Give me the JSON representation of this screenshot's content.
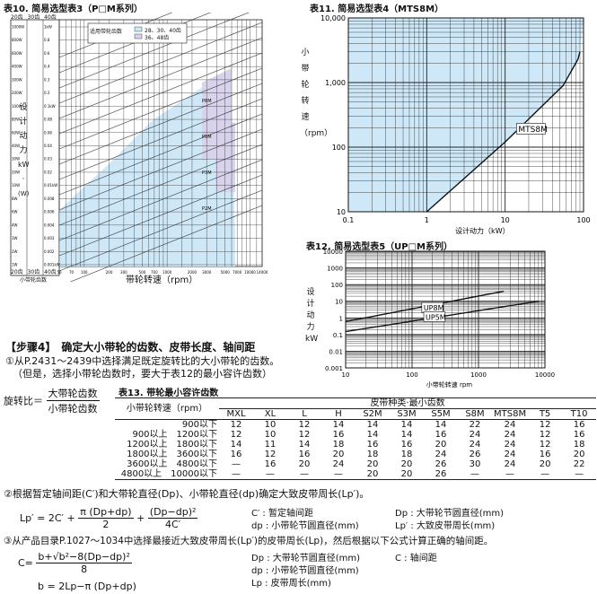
{
  "table10": {
    "title": "表10. 简易选型表3（P□M系列）",
    "ylabel_chars": [
      "设",
      "计",
      "动",
      "力",
      "kW",
      "·",
      "(W)"
    ],
    "xlabel": "带轮转速（rpm）",
    "legend_title": "适用带轮齿数",
    "legend_items": [
      "28、30、40齿",
      "36、48齿"
    ],
    "top_scale": [
      "20齿",
      "30齿",
      "40齿"
    ],
    "bottom_scale": [
      "20齿",
      "30齿",
      "40齿"
    ],
    "bottom_scale_label": "小带轮齿数",
    "left_ticks": [
      "1000W",
      "800W",
      "600W",
      "400W",
      "300W",
      "200W",
      "100W",
      "80W",
      "60W",
      "40W",
      "30W",
      "20W",
      "10W",
      "8W",
      "6W",
      "4W",
      "3W",
      "2W",
      "1W"
    ],
    "inner_left_ticks": [
      "1kW",
      "0.8",
      "0.6",
      "0.4",
      "0.3",
      "0.2",
      "0.1kW",
      "0.08",
      "0.06",
      "0.04",
      "0.03",
      "0.02",
      "0.01kW",
      "0.008",
      "0.006",
      "0.004",
      "0.003",
      "0.002",
      "0.001kW"
    ],
    "x_ticks": [
      "50",
      "70",
      "100",
      "200",
      "300",
      "500",
      "700",
      "1000",
      "2000",
      "3000",
      "5000",
      "7000",
      "10000",
      "14000"
    ],
    "series_labels": [
      "P8M",
      "P5M",
      "P3M",
      "P2M"
    ]
  },
  "chart_data": [
    {
      "type": "line",
      "title": "表11. 简易选型表4（MTS8M）",
      "xlabel": "设计动力（kW）",
      "ylabel": "小带轮转速（rpm）",
      "x_scale": "log",
      "y_scale": "log",
      "xlim": [
        0.1,
        100
      ],
      "ylim": [
        10,
        10000
      ],
      "x_ticks": [
        "0.1",
        "1",
        "10",
        "100"
      ],
      "y_ticks": [
        "10",
        "100",
        "1,000",
        "10,000"
      ],
      "series": [
        {
          "name": "MTS8M",
          "x": [
            1.0,
            10,
            55,
            85,
            90
          ],
          "y": [
            10,
            120,
            900,
            2300,
            3000
          ]
        }
      ]
    },
    {
      "type": "line",
      "title": "表12. 简易选型表5（UP□M系列）",
      "xlabel": "小带轮转速",
      "xunit": "rpm",
      "ylabel": "设计动力kW",
      "x_scale": "log",
      "y_scale": "log",
      "xlim": [
        10,
        10000
      ],
      "ylim": [
        0.001,
        10000
      ],
      "x_ticks": [
        "10",
        "100",
        "1000",
        "10000"
      ],
      "y_ticks": [
        "10000",
        "1000",
        "100",
        "10",
        "1",
        "0.1",
        "0.01",
        "0.001"
      ],
      "series": [
        {
          "name": "UP8M",
          "x": [
            10,
            2400
          ],
          "y": [
            0.6,
            40
          ]
        },
        {
          "name": "UP5M",
          "x": [
            10,
            8000
          ],
          "y": [
            0.15,
            10
          ]
        }
      ]
    }
  ],
  "step4": {
    "title": "【步骤4】　确定大小带轮的齿数、皮带长度、轴间距",
    "p1": "①从P.2431～2439中选择满足既定旋转比的大小带轮的齿数。",
    "p2": "（但是，选择小带轮齿数时，要大于表12的最小容许齿数）",
    "ratio_label": "旋转比＝",
    "ratio_num": "大带轮齿数",
    "ratio_den": "小带轮齿数"
  },
  "table13": {
    "title": "表13. 带轮最小容许齿数",
    "speed_header": "小带轮转速（rpm）",
    "type_header": "皮带种类·最小齿数",
    "columns": [
      "MXL",
      "XL",
      "L",
      "H",
      "S2M",
      "S3M",
      "S5M",
      "S8M",
      "MTS8M",
      "T5",
      "T10"
    ],
    "rows": [
      {
        "speed": "900以下",
        "values": [
          "12",
          "10",
          "12",
          "14",
          "14",
          "14",
          "14",
          "22",
          "24",
          "12",
          "16"
        ]
      },
      {
        "speed": "900以上　1200以下",
        "values": [
          "12",
          "10",
          "12",
          "16",
          "14",
          "14",
          "16",
          "24",
          "24",
          "12",
          "16"
        ]
      },
      {
        "speed": "1200以上　1800以下",
        "values": [
          "14",
          "11",
          "14",
          "18",
          "16",
          "16",
          "20",
          "24",
          "24",
          "12",
          "18"
        ]
      },
      {
        "speed": "1800以上　3600以下",
        "values": [
          "16",
          "12",
          "16",
          "20",
          "18",
          "18",
          "24",
          "26",
          "24",
          "16",
          "20"
        ]
      },
      {
        "speed": "3600以上　4800以下",
        "values": [
          "—",
          "16",
          "20",
          "24",
          "20",
          "20",
          "26",
          "30",
          "24",
          "20",
          "22"
        ]
      },
      {
        "speed": "4800以上　10000以下",
        "values": [
          "—",
          "—",
          "—",
          "—",
          "20",
          "20",
          "26",
          "—",
          "—",
          "—",
          "—"
        ]
      }
    ]
  },
  "step4b": {
    "p3": "②根据暂定轴间距(C′)和大带轮直径(Dp)、小带轮直径(dp)确定大致皮带周长(Lp′)。",
    "lp_lhs": "Lp′ = 2C′ +",
    "lp_f1_num": "π (Dp+dp)",
    "lp_f1_den": "2",
    "lp_plus": "+",
    "lp_f2_num": "(Dp−dp)²",
    "lp_f2_den": "4C′",
    "sym1": [
      "C′ : 暂定轴间距",
      "dp : 小带轮节圆直径(mm)"
    ],
    "sym2": [
      "Dp : 大带轮节圆直径(mm)",
      "Lp′ : 大致皮带周长(mm)"
    ],
    "p4": "③从产品目录P.1027～1034中选择最接近大致皮带周长(Lp′)的皮带周长(Lp)，然后根据以下公式计算正确的轴间距。",
    "c_lhs": "C=",
    "c_num": "b+√b²−8(Dp−dp)²",
    "c_den": "8",
    "b_eq": "b = 2Lp−π (Dp+dp)",
    "sym3": [
      "Dp : 大带轮节圆直径(mm)",
      "dp : 小带轮节圆直径(mm)",
      "Lp : 皮带周长(mm)"
    ],
    "sym4": "C : 轴间距"
  },
  "colors": {
    "fill": "#cfe8f7",
    "fill_purple": "#d8d2ec",
    "line": "#111111"
  }
}
